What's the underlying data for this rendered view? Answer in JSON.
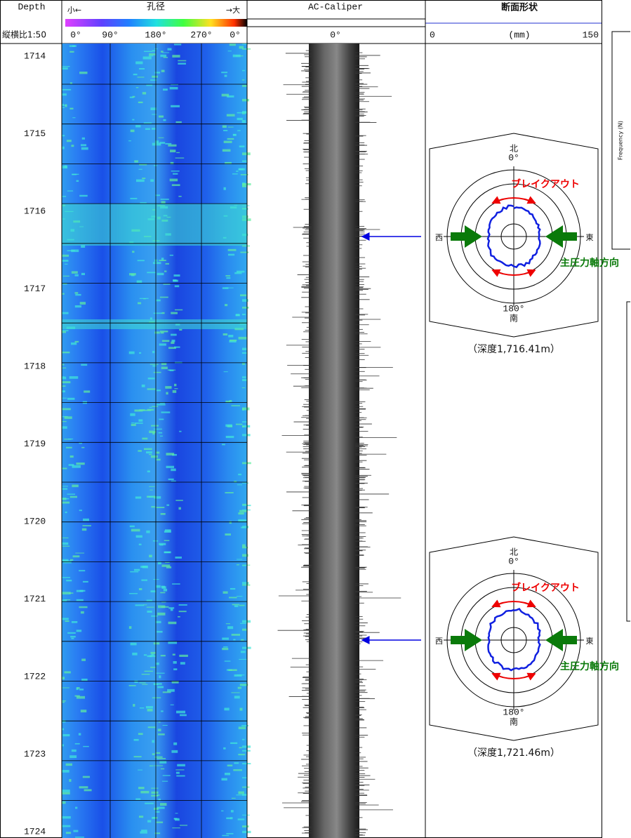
{
  "header": {
    "depth": "Depth",
    "scale": "縦横比1:50",
    "small": "小←",
    "diameter": "孔径",
    "large": "→大",
    "image_ticks": [
      "0°",
      "90°",
      "180°",
      "270°",
      "0°"
    ],
    "caliper": "AC-Caliper",
    "caliper_tick": "0°",
    "section": "断面形状",
    "section_ticks": [
      "0",
      "(mm)",
      "150"
    ]
  },
  "depths": [
    1714,
    1715,
    1716,
    1717,
    1718,
    1719,
    1720,
    1721,
    1722,
    1723,
    1724
  ],
  "sections": [
    {
      "north": "北",
      "north_deg": "0°",
      "breakout": "ブレイクアウト",
      "west": "西",
      "east": "東",
      "stress": "主圧力軸方向",
      "south_deg": "180°",
      "south": "南",
      "caption": "（深度1,716.41m）"
    },
    {
      "north": "北",
      "north_deg": "0°",
      "breakout": "ブレイクアウト",
      "west": "西",
      "east": "東",
      "stress": "主圧力軸方向",
      "south_deg": "180°",
      "south": "南",
      "caption": "（深度1,721.46m）"
    }
  ],
  "side_panel": {
    "axis_label": "Frequency (N)"
  }
}
